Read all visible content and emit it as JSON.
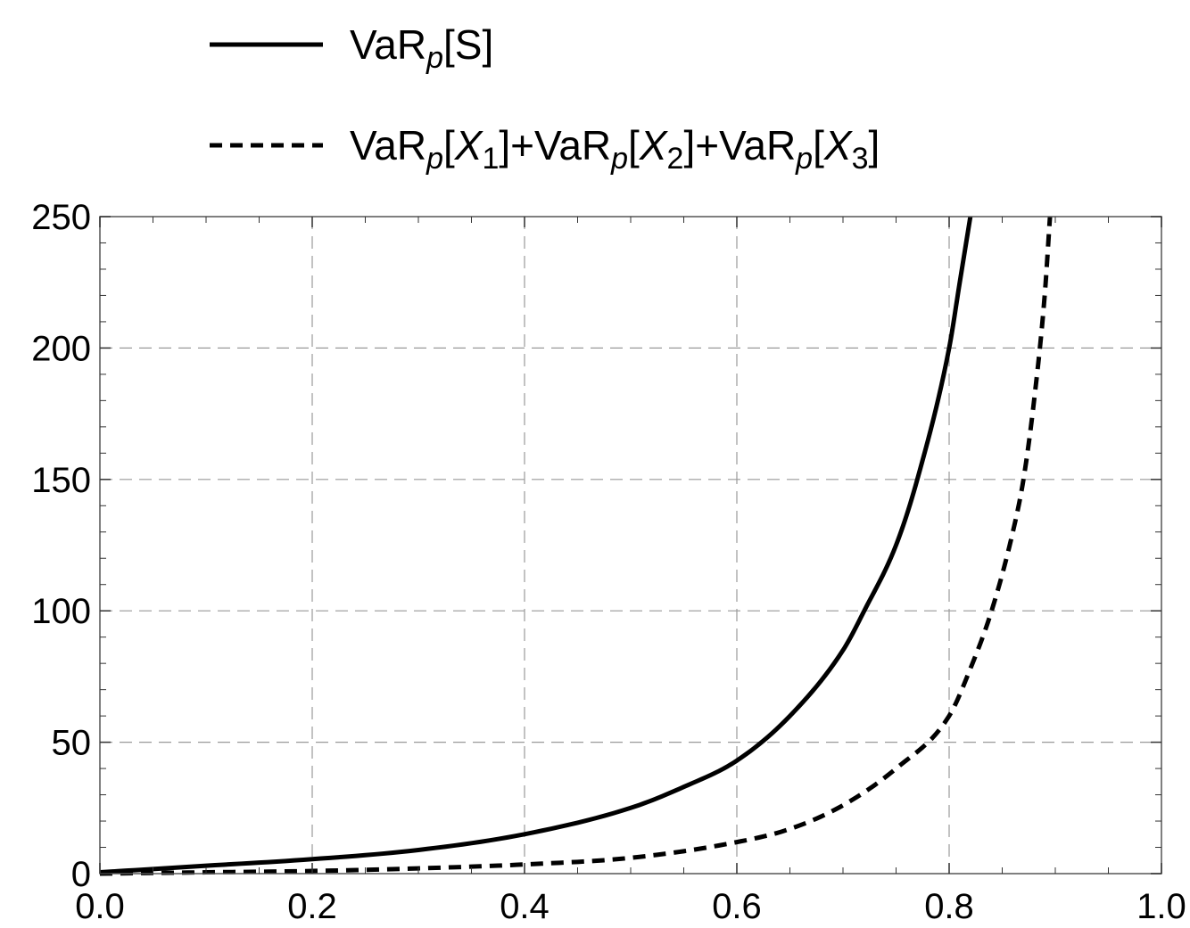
{
  "chart_data": {
    "type": "line",
    "title": "",
    "xlabel": "",
    "ylabel": "",
    "xlim": [
      0.0,
      1.0
    ],
    "ylim": [
      0,
      250
    ],
    "grid": true,
    "legend_position": "top",
    "x_ticks": [
      "0.0",
      "0.2",
      "0.4",
      "0.6",
      "0.8",
      "1.0"
    ],
    "y_ticks": [
      "0",
      "50",
      "100",
      "150",
      "200",
      "250"
    ],
    "series": [
      {
        "name": "VaRp[S]",
        "style": "solid",
        "color": "#000000",
        "x": [
          0.0,
          0.1,
          0.2,
          0.3,
          0.4,
          0.5,
          0.55,
          0.6,
          0.65,
          0.7,
          0.72,
          0.75,
          0.77,
          0.8,
          0.81,
          0.82
        ],
        "y": [
          0.5,
          3,
          5.5,
          9,
          15,
          25,
          33,
          43,
          60,
          85,
          100,
          125,
          150,
          200,
          225,
          250
        ]
      },
      {
        "name": "VaRp[X1]+VaRp[X2]+VaRp[X3]",
        "style": "dashed",
        "color": "#000000",
        "x": [
          0.0,
          0.1,
          0.2,
          0.3,
          0.4,
          0.5,
          0.6,
          0.65,
          0.7,
          0.75,
          0.8,
          0.82,
          0.84,
          0.86,
          0.87,
          0.88,
          0.89,
          0.895
        ],
        "y": [
          0,
          0.5,
          1,
          2,
          3.5,
          6,
          12,
          17,
          26,
          40,
          60,
          78,
          100,
          130,
          150,
          180,
          220,
          250
        ]
      }
    ]
  }
}
